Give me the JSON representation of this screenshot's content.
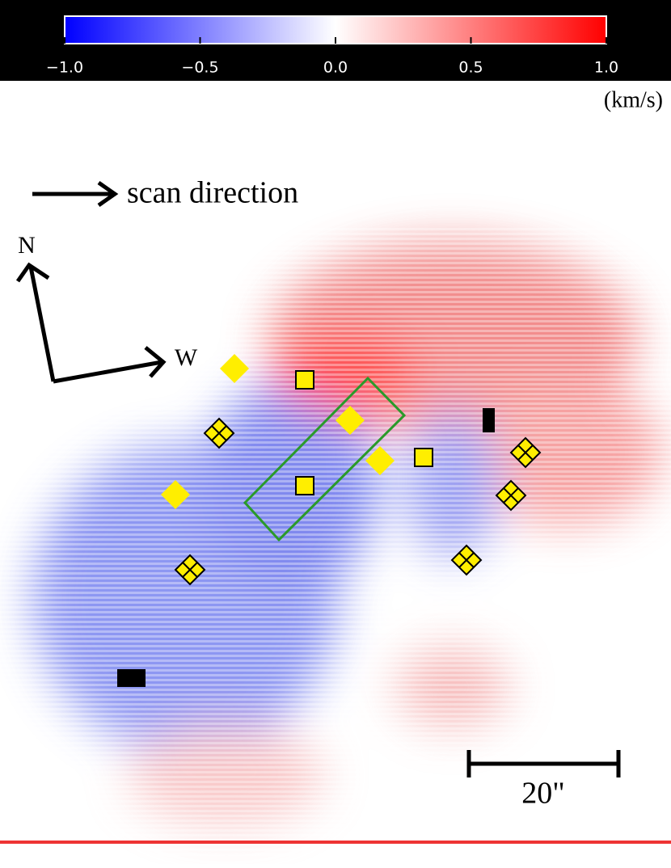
{
  "chart_data": {
    "type": "colormap",
    "colormap": [
      "#0000ff",
      "#ffffff",
      "#ff0000"
    ],
    "clim": [
      -1,
      1
    ],
    "cticks": [
      {
        "value": -1,
        "label": "−1.0"
      },
      {
        "value": -0.5,
        "label": "−0.5"
      },
      {
        "value": 0,
        "label": "0.0"
      },
      {
        "value": 0.5,
        "label": "0.5"
      },
      {
        "value": 1,
        "label": "1.0"
      }
    ],
    "unit": "(km/s)",
    "annotations": {
      "scan": "scan direction",
      "north": "N",
      "west": "W",
      "scale": "20\""
    }
  }
}
